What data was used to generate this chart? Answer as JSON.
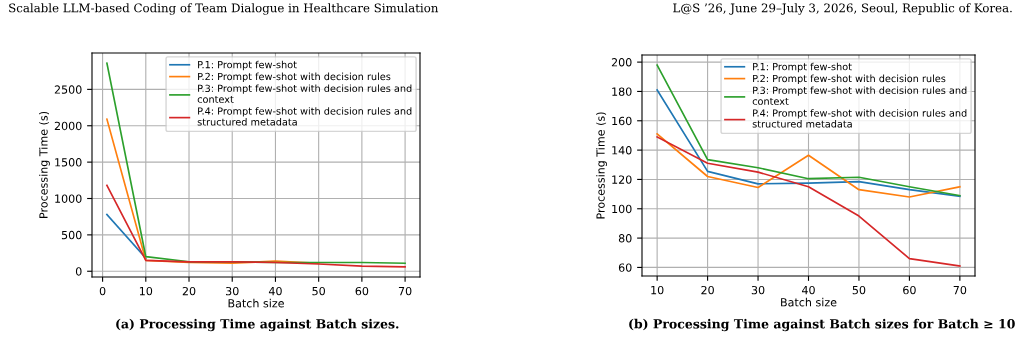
{
  "chart_data": [
    {
      "type": "line",
      "xlabel": "Batch size",
      "ylabel": "Processing Time (s)",
      "x": [
        1,
        10,
        20,
        30,
        40,
        50,
        60,
        70
      ],
      "xlim": [
        -2.45,
        73.45
      ],
      "ylim": [
        -79,
        3000
      ],
      "xticks": [
        0,
        10,
        20,
        30,
        40,
        50,
        60,
        70
      ],
      "yticks": [
        0,
        500,
        1000,
        1500,
        2000,
        2500
      ],
      "grid": true,
      "legend": "top right",
      "annotations": [
        "Scalable LLM-based Coding of Team Dialogue in Healthcare Simulation",
        "(a) Processing Time against Batch sizes."
      ],
      "series": [
        {
          "name": "P.1: Prompt few-shot",
          "color": "#1f77b4",
          "values": [
            780,
            180,
            null,
            null,
            null,
            null,
            null,
            null
          ]
        },
        {
          "name": "P.2: Prompt few-shot with decision rules",
          "color": "#ff7f0e",
          "values": [
            2090,
            150,
            120,
            110,
            140,
            110,
            null,
            null
          ]
        },
        {
          "name": "P.3: Prompt few-shot with decision rules and\ncontext",
          "color": "#2ca02c",
          "values": [
            2860,
            200,
            130,
            130,
            120,
            120,
            120,
            110
          ]
        },
        {
          "name": "P.4: Prompt few-shot with decision rules and\nstructured metadata",
          "color": "#d62728",
          "values": [
            1180,
            150,
            130,
            130,
            120,
            100,
            70,
            60
          ]
        }
      ]
    },
    {
      "type": "line",
      "xlabel": "Batch size",
      "ylabel": "Processing Time (s)",
      "x": [
        10,
        20,
        30,
        40,
        50,
        60,
        70
      ],
      "xlim": [
        7,
        73
      ],
      "ylim": [
        54.15,
        204.85
      ],
      "xticks": [
        10,
        20,
        30,
        40,
        50,
        60,
        70
      ],
      "yticks": [
        60,
        80,
        100,
        120,
        140,
        160,
        180,
        200
      ],
      "grid": true,
      "legend": "top right",
      "annotations": [
        "L@S ’26, June 29–July 3, 2026, Seoul, Republic of Korea.",
        "(b) Processing Time against Batch sizes for Batch ≥ 10"
      ],
      "series": [
        {
          "name": "P.1: Prompt few-shot",
          "color": "#1f77b4",
          "values": [
            181,
            125.5,
            117,
            117.5,
            118.5,
            113,
            108.5
          ]
        },
        {
          "name": "P.2: Prompt few-shot with decision rules",
          "color": "#ff7f0e",
          "values": [
            151,
            122,
            114.5,
            136.5,
            113,
            108,
            115
          ]
        },
        {
          "name": "P.3: Prompt few-shot with decision rules and\ncontext",
          "color": "#2ca02c",
          "values": [
            198,
            133.5,
            128,
            120.5,
            121.5,
            115,
            109
          ]
        },
        {
          "name": "P.4: Prompt few-shot with decision rules and\nstructured metadata",
          "color": "#d62728",
          "values": [
            149,
            131,
            125,
            115,
            95,
            66,
            61
          ]
        }
      ]
    }
  ]
}
